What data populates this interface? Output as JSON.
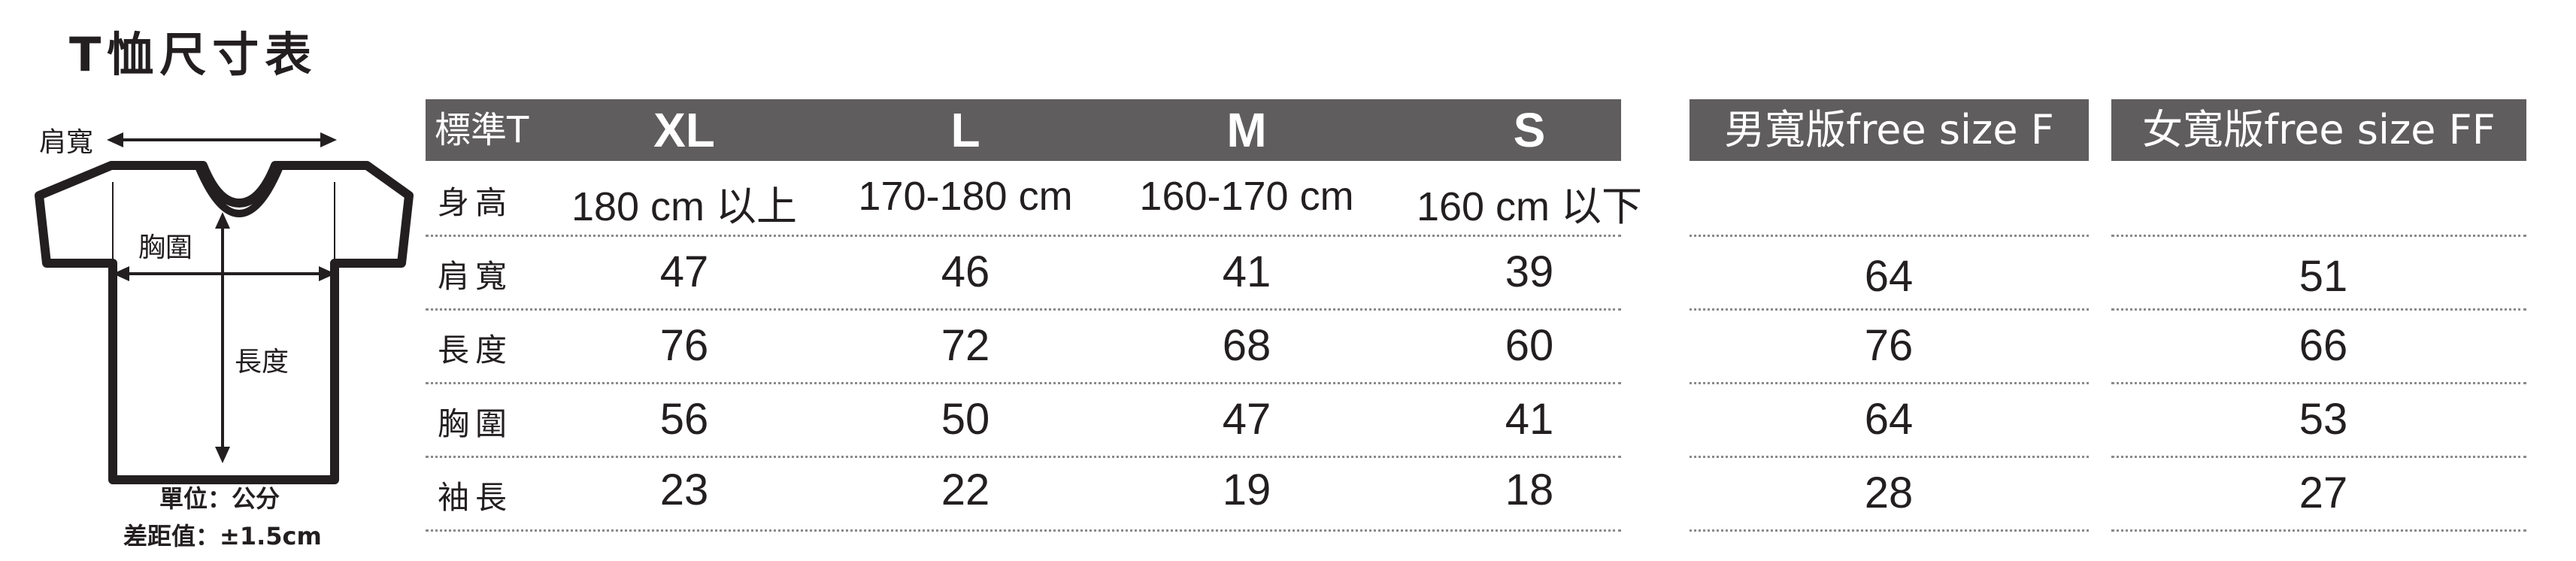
{
  "title": "T恤尺寸表",
  "diagram": {
    "shoulder_label": "肩寬",
    "chest_label": "胸圍",
    "length_label": "長度"
  },
  "unit_note": "單位：公分",
  "tolerance_note": "差距值：±1.5cm",
  "standard": {
    "label": "標準T",
    "sizes": [
      "XL",
      "L",
      "M",
      "S"
    ]
  },
  "men_free": "男寬版free size F",
  "women_free": "女寬版free size FF",
  "rows": [
    {
      "label": "身高",
      "std": [
        "180 cm 以上",
        "170-180 cm",
        "160-170 cm",
        "160 cm 以下"
      ],
      "men": "",
      "women": ""
    },
    {
      "label": "肩寬",
      "std": [
        "47",
        "46",
        "41",
        "39"
      ],
      "men": "64",
      "women": "51"
    },
    {
      "label": "長度",
      "std": [
        "76",
        "72",
        "68",
        "60"
      ],
      "men": "76",
      "women": "66"
    },
    {
      "label": "胸圍",
      "std": [
        "56",
        "50",
        "47",
        "41"
      ],
      "men": "64",
      "women": "53"
    },
    {
      "label": "袖長",
      "std": [
        "23",
        "22",
        "19",
        "18"
      ],
      "men": "28",
      "women": "27"
    }
  ]
}
